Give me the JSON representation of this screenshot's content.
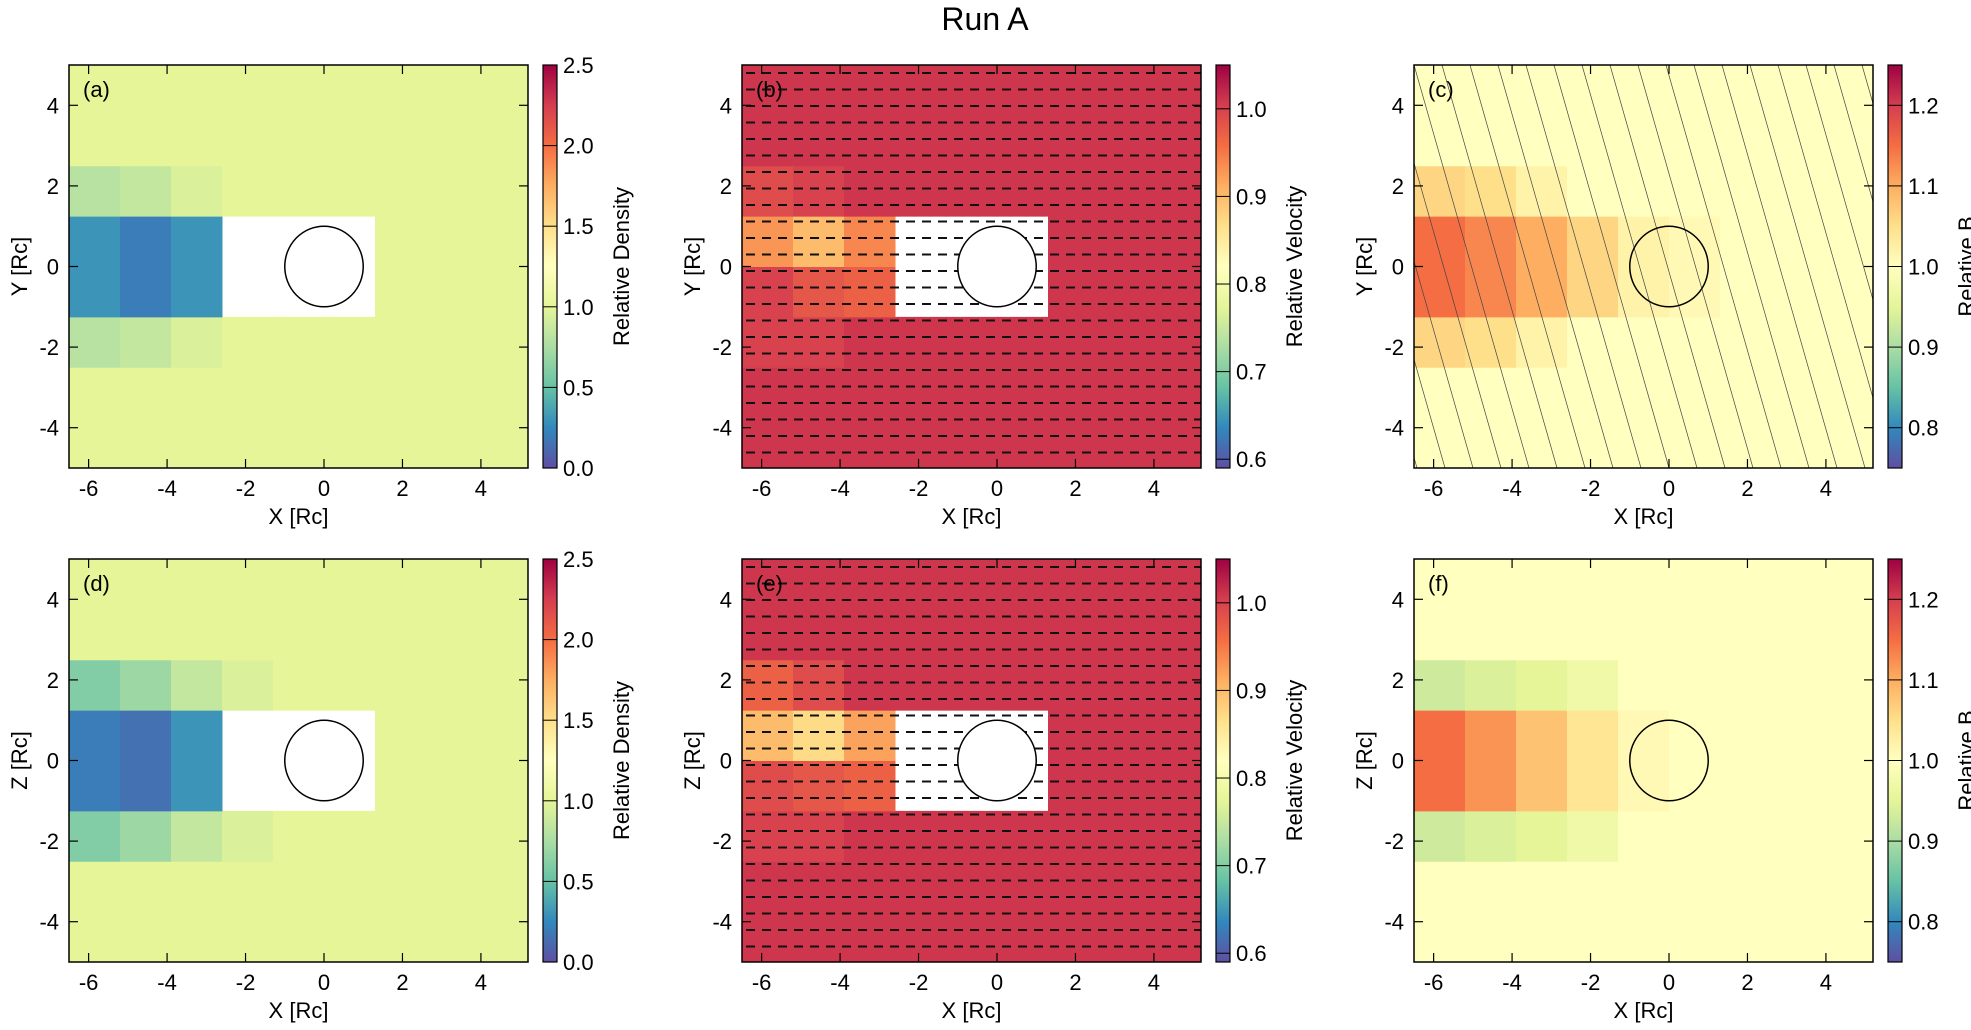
{
  "title": "Run A",
  "chart_data": [
    {
      "type": "heatmap",
      "label": "(a)",
      "xlabel": "X [Rc]",
      "ylabel": "Y [Rc]",
      "colorbar_label": "Relative Density",
      "xlim": [
        -6.5,
        5.2
      ],
      "ylim": [
        -5,
        5
      ],
      "xticks": [
        -6,
        -4,
        -2,
        0,
        2,
        4
      ],
      "yticks": [
        -4,
        -2,
        0,
        2,
        4
      ],
      "zlim": [
        0,
        2.5
      ],
      "zticks": [
        {
          "value": 0,
          "label": "0.0"
        },
        0.5,
        {
          "value": 1,
          "label": "1.0"
        },
        1.5,
        {
          "value": 2,
          "label": "2.0"
        },
        2.5
      ],
      "colormap": [
        "#5e4fa2",
        "#3288bd",
        "#66c2a5",
        "#abdda4",
        "#e6f598",
        "#ffffbf",
        "#fee08b",
        "#fdae61",
        "#f46d43",
        "#d53e4f",
        "#9e0142"
      ],
      "overlay": "none",
      "obstacle_filled": true,
      "x_edges": [
        -6.5,
        -5.2,
        -3.9,
        -2.6,
        -1.3,
        0,
        1.3,
        2.6,
        3.9,
        5.2
      ],
      "y_edges": [
        -5,
        -3.75,
        -2.5,
        -1.25,
        0,
        1.25,
        2.5,
        3.75,
        5
      ],
      "z": [
        [
          1,
          1,
          1,
          1,
          1,
          1,
          1,
          1,
          1
        ],
        [
          1,
          1,
          1,
          1,
          1,
          1,
          1,
          1,
          1
        ],
        [
          0.8,
          0.85,
          0.95,
          1,
          1,
          1,
          1,
          1,
          1
        ],
        [
          0.3,
          0.2,
          0.3,
          null,
          null,
          null,
          1,
          1,
          1
        ],
        [
          0.3,
          0.2,
          0.3,
          null,
          null,
          null,
          1,
          1,
          1
        ],
        [
          0.8,
          0.85,
          0.95,
          1,
          1,
          1,
          1,
          1,
          1
        ],
        [
          1,
          1,
          1,
          1,
          1,
          1,
          1,
          1,
          1
        ],
        [
          1,
          1,
          1,
          1,
          1,
          1,
          1,
          1,
          1
        ]
      ]
    },
    {
      "type": "heatmap",
      "label": "(b)",
      "xlabel": "X [Rc]",
      "ylabel": "Y [Rc]",
      "colorbar_label": "Relative Velocity",
      "xlim": [
        -6.5,
        5.2
      ],
      "ylim": [
        -5,
        5
      ],
      "xticks": [
        -6,
        -4,
        -2,
        0,
        2,
        4
      ],
      "yticks": [
        -4,
        -2,
        0,
        2,
        4
      ],
      "zlim": [
        0.59,
        1.05
      ],
      "zticks": [
        0.6,
        0.7,
        0.8,
        0.9,
        {
          "value": 1,
          "label": "1.0"
        }
      ],
      "colormap": [
        "#5e4fa2",
        "#3288bd",
        "#66c2a5",
        "#abdda4",
        "#e6f598",
        "#ffffbf",
        "#fee08b",
        "#fdae61",
        "#f46d43",
        "#d53e4f",
        "#9e0142"
      ],
      "overlay": "vectors",
      "obstacle_filled": true,
      "x_edges": [
        -6.5,
        -5.2,
        -3.9,
        -2.6,
        -1.3,
        0,
        1.3,
        2.6,
        3.9,
        5.2
      ],
      "y_edges": [
        -5,
        -3.75,
        -2.5,
        -1.25,
        0,
        1.25,
        2.5,
        3.75,
        5
      ],
      "z": [
        [
          1.01,
          1.01,
          1.01,
          1.01,
          1.01,
          1.01,
          1.01,
          1.01,
          1.01
        ],
        [
          1.01,
          1.01,
          1.01,
          1.01,
          1.01,
          1.01,
          1.01,
          1.01,
          1.01
        ],
        [
          1.0,
          1.0,
          1.01,
          1.01,
          1.01,
          1.01,
          1.01,
          1.01,
          1.01
        ],
        [
          1.0,
          0.98,
          0.97,
          null,
          null,
          null,
          1.01,
          1.01,
          1.01
        ],
        [
          0.93,
          0.9,
          0.94,
          null,
          null,
          null,
          1.01,
          1.01,
          1.01
        ],
        [
          0.99,
          1.0,
          1.01,
          1.01,
          1.01,
          1.01,
          1.01,
          1.01,
          1.01
        ],
        [
          1.01,
          1.01,
          1.01,
          1.01,
          1.01,
          1.01,
          1.01,
          1.01,
          1.01
        ],
        [
          1.01,
          1.01,
          1.01,
          1.01,
          1.01,
          1.01,
          1.01,
          1.01,
          1.01
        ]
      ]
    },
    {
      "type": "heatmap",
      "label": "(c)",
      "xlabel": "X [Rc]",
      "ylabel": "Y [Rc]",
      "colorbar_label": "Relative B",
      "xlim": [
        -6.5,
        5.2
      ],
      "ylim": [
        -5,
        5
      ],
      "xticks": [
        -6,
        -4,
        -2,
        0,
        2,
        4
      ],
      "yticks": [
        -4,
        -2,
        0,
        2,
        4
      ],
      "zlim": [
        0.75,
        1.25
      ],
      "zticks": [
        0.8,
        0.9,
        {
          "value": 1,
          "label": "1.0"
        },
        1.1,
        1.2
      ],
      "colormap": [
        "#5e4fa2",
        "#3288bd",
        "#66c2a5",
        "#abdda4",
        "#e6f598",
        "#ffffbf",
        "#fee08b",
        "#fdae61",
        "#f46d43",
        "#d53e4f",
        "#9e0142"
      ],
      "overlay": "field_lines",
      "obstacle_filled": false,
      "x_edges": [
        -6.5,
        -5.2,
        -3.9,
        -2.6,
        -1.3,
        0,
        1.3,
        2.6,
        3.9,
        5.2
      ],
      "y_edges": [
        -5,
        -3.75,
        -2.5,
        -1.25,
        0,
        1.25,
        2.5,
        3.75,
        5
      ],
      "z": [
        [
          1,
          1,
          1,
          1,
          1,
          1,
          1,
          1,
          1
        ],
        [
          1,
          1,
          1,
          1,
          1,
          1,
          1,
          1,
          1
        ],
        [
          1.06,
          1.05,
          1.02,
          1,
          1,
          1,
          1,
          1,
          1
        ],
        [
          1.15,
          1.13,
          1.1,
          1.06,
          1.02,
          1.01,
          1,
          1,
          1
        ],
        [
          1.15,
          1.13,
          1.1,
          1.06,
          1.02,
          1.01,
          1,
          1,
          1
        ],
        [
          1.06,
          1.05,
          1.02,
          1,
          1,
          1,
          1,
          1,
          1
        ],
        [
          1,
          1,
          1,
          1,
          1,
          1,
          1,
          1,
          1
        ],
        [
          1,
          1,
          1,
          1,
          1,
          1,
          1,
          1,
          1
        ]
      ]
    },
    {
      "type": "heatmap",
      "label": "(d)",
      "xlabel": "X [Rc]",
      "ylabel": "Z [Rc]",
      "colorbar_label": "Relative Density",
      "xlim": [
        -6.5,
        5.2
      ],
      "ylim": [
        -5,
        5
      ],
      "xticks": [
        -6,
        -4,
        -2,
        0,
        2,
        4
      ],
      "yticks": [
        -4,
        -2,
        0,
        2,
        4
      ],
      "zlim": [
        0,
        2.5
      ],
      "zticks": [
        {
          "value": 0,
          "label": "0.0"
        },
        0.5,
        {
          "value": 1,
          "label": "1.0"
        },
        1.5,
        {
          "value": 2,
          "label": "2.0"
        },
        2.5
      ],
      "colormap": [
        "#5e4fa2",
        "#3288bd",
        "#66c2a5",
        "#abdda4",
        "#e6f598",
        "#ffffbf",
        "#fee08b",
        "#fdae61",
        "#f46d43",
        "#d53e4f",
        "#9e0142"
      ],
      "overlay": "none",
      "obstacle_filled": true,
      "x_edges": [
        -6.5,
        -5.2,
        -3.9,
        -2.6,
        -1.3,
        0,
        1.3,
        2.6,
        3.9,
        5.2
      ],
      "y_edges": [
        -5,
        -3.75,
        -2.5,
        -1.25,
        0,
        1.25,
        2.5,
        3.75,
        5
      ],
      "z": [
        [
          1,
          1,
          1,
          1,
          1,
          1,
          1,
          1,
          1
        ],
        [
          1,
          1,
          1,
          1,
          1,
          1,
          1,
          1,
          1
        ],
        [
          0.6,
          0.7,
          0.85,
          0.95,
          1,
          1,
          1,
          1,
          1
        ],
        [
          0.2,
          0.15,
          0.3,
          null,
          null,
          null,
          1,
          1,
          1
        ],
        [
          0.2,
          0.15,
          0.3,
          null,
          null,
          null,
          1,
          1,
          1
        ],
        [
          0.6,
          0.7,
          0.85,
          0.95,
          1,
          1,
          1,
          1,
          1
        ],
        [
          1,
          1,
          1,
          1,
          1,
          1,
          1,
          1,
          1
        ],
        [
          1,
          1,
          1,
          1,
          1,
          1,
          1,
          1,
          1
        ]
      ]
    },
    {
      "type": "heatmap",
      "label": "(e)",
      "xlabel": "X [Rc]",
      "ylabel": "Z [Rc]",
      "colorbar_label": "Relative Velocity",
      "xlim": [
        -6.5,
        5.2
      ],
      "ylim": [
        -5,
        5
      ],
      "xticks": [
        -6,
        -4,
        -2,
        0,
        2,
        4
      ],
      "yticks": [
        -4,
        -2,
        0,
        2,
        4
      ],
      "zlim": [
        0.59,
        1.05
      ],
      "zticks": [
        0.6,
        0.7,
        0.8,
        0.9,
        {
          "value": 1,
          "label": "1.0"
        }
      ],
      "colormap": [
        "#5e4fa2",
        "#3288bd",
        "#66c2a5",
        "#abdda4",
        "#e6f598",
        "#ffffbf",
        "#fee08b",
        "#fdae61",
        "#f46d43",
        "#d53e4f",
        "#9e0142"
      ],
      "overlay": "vectors",
      "obstacle_filled": true,
      "x_edges": [
        -6.5,
        -5.2,
        -3.9,
        -2.6,
        -1.3,
        0,
        1.3,
        2.6,
        3.9,
        5.2
      ],
      "y_edges": [
        -5,
        -3.75,
        -2.5,
        -1.25,
        0,
        1.25,
        2.5,
        3.75,
        5
      ],
      "z": [
        [
          1.01,
          1.01,
          1.01,
          1.01,
          1.01,
          1.01,
          1.01,
          1.01,
          1.01
        ],
        [
          1.01,
          1.01,
          1.01,
          1.01,
          1.01,
          1.01,
          1.01,
          1.01,
          1.01
        ],
        [
          1.0,
          1.0,
          1.01,
          1.01,
          1.01,
          1.01,
          1.01,
          1.01,
          1.01
        ],
        [
          0.99,
          0.98,
          0.97,
          null,
          null,
          null,
          1.01,
          1.01,
          1.01
        ],
        [
          0.9,
          0.87,
          0.92,
          null,
          null,
          null,
          1.01,
          1.01,
          1.01
        ],
        [
          0.97,
          0.99,
          1.01,
          1.01,
          1.01,
          1.01,
          1.01,
          1.01,
          1.01
        ],
        [
          1.01,
          1.01,
          1.01,
          1.01,
          1.01,
          1.01,
          1.01,
          1.01,
          1.01
        ],
        [
          1.01,
          1.01,
          1.01,
          1.01,
          1.01,
          1.01,
          1.01,
          1.01,
          1.01
        ]
      ]
    },
    {
      "type": "heatmap",
      "label": "(f)",
      "xlabel": "X [Rc]",
      "ylabel": "Z [Rc]",
      "colorbar_label": "Relative B",
      "xlim": [
        -6.5,
        5.2
      ],
      "ylim": [
        -5,
        5
      ],
      "xticks": [
        -6,
        -4,
        -2,
        0,
        2,
        4
      ],
      "yticks": [
        -4,
        -2,
        0,
        2,
        4
      ],
      "zlim": [
        0.75,
        1.25
      ],
      "zticks": [
        0.8,
        0.9,
        {
          "value": 1,
          "label": "1.0"
        },
        1.1,
        1.2
      ],
      "colormap": [
        "#5e4fa2",
        "#3288bd",
        "#66c2a5",
        "#abdda4",
        "#e6f598",
        "#ffffbf",
        "#fee08b",
        "#fdae61",
        "#f46d43",
        "#d53e4f",
        "#9e0142"
      ],
      "overlay": "none",
      "obstacle_filled": false,
      "x_edges": [
        -6.5,
        -5.2,
        -3.9,
        -2.6,
        -1.3,
        0,
        1.3,
        2.6,
        3.9,
        5.2
      ],
      "y_edges": [
        -5,
        -3.75,
        -2.5,
        -1.25,
        0,
        1.25,
        2.5,
        3.75,
        5
      ],
      "z": [
        [
          1,
          1,
          1,
          1,
          1,
          1,
          1,
          1,
          1
        ],
        [
          1,
          1,
          1,
          1,
          1,
          1,
          1,
          1,
          1
        ],
        [
          0.93,
          0.94,
          0.95,
          0.97,
          1,
          1,
          1,
          1,
          1
        ],
        [
          1.15,
          1.12,
          1.08,
          1.04,
          1.01,
          1.0,
          1,
          1,
          1
        ],
        [
          1.15,
          1.12,
          1.08,
          1.04,
          1.01,
          1.0,
          1,
          1,
          1
        ],
        [
          0.93,
          0.94,
          0.95,
          0.97,
          1,
          1,
          1,
          1,
          1
        ],
        [
          1,
          1,
          1,
          1,
          1,
          1,
          1,
          1,
          1
        ],
        [
          1,
          1,
          1,
          1,
          1,
          1,
          1,
          1,
          1
        ]
      ]
    }
  ]
}
